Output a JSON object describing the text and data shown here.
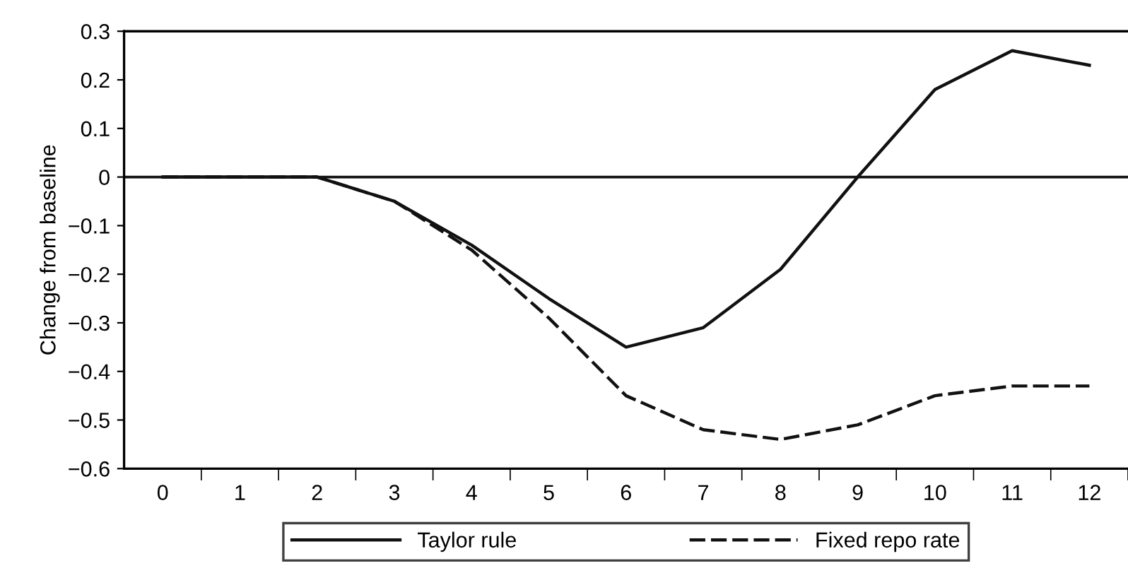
{
  "chart_data": {
    "type": "line",
    "ylabel": "Change from baseline",
    "categories": [
      "0",
      "1",
      "2",
      "3",
      "4",
      "5",
      "6",
      "7",
      "8",
      "9",
      "10",
      "11",
      "12"
    ],
    "series": [
      {
        "name": "Taylor rule",
        "color": "#111111",
        "line_style": "solid",
        "values": [
          0,
          0,
          0,
          -0.05,
          -0.14,
          -0.25,
          -0.35,
          -0.31,
          -0.19,
          0.0,
          0.18,
          0.26,
          0.23
        ]
      },
      {
        "name": "Fixed repo rate",
        "color": "#111111",
        "line_style": "dashed",
        "values": [
          0,
          0,
          0,
          -0.05,
          -0.15,
          -0.29,
          -0.45,
          -0.52,
          -0.54,
          -0.51,
          -0.45,
          -0.43,
          -0.43
        ]
      }
    ],
    "ylim": [
      -0.6,
      0.3
    ],
    "yticks": [
      {
        "value": -0.6,
        "label": "−0.6"
      },
      {
        "value": -0.5,
        "label": "−0.5"
      },
      {
        "value": -0.4,
        "label": "−0.4"
      },
      {
        "value": -0.3,
        "label": "−0.3"
      },
      {
        "value": -0.2,
        "label": "−0.2"
      },
      {
        "value": -0.1,
        "label": "−0.1"
      },
      0,
      0.1,
      0.2,
      0.3
    ],
    "ref_lines": [
      {
        "axis": "y",
        "value": 0,
        "color": "#111111"
      }
    ],
    "grid": false,
    "legend": "bottom",
    "marker": "none"
  }
}
